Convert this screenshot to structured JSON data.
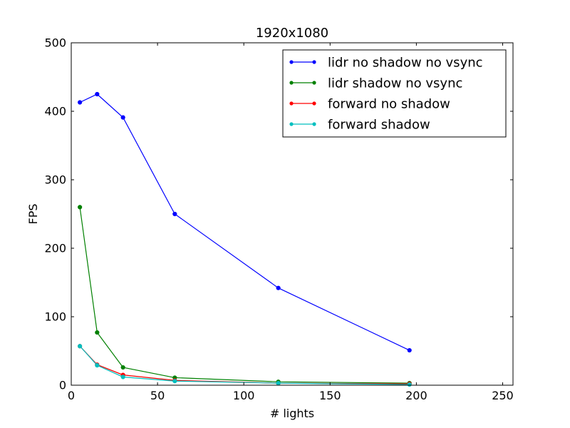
{
  "chart_data": {
    "type": "line",
    "title": "1920x1080",
    "xlabel": "# lights",
    "ylabel": "FPS",
    "xlim": [
      0,
      256
    ],
    "ylim": [
      0,
      500
    ],
    "xticks": [
      0,
      50,
      100,
      150,
      200,
      250
    ],
    "yticks": [
      0,
      100,
      200,
      300,
      400,
      500
    ],
    "grid": false,
    "legend_position": "top-right",
    "series": [
      {
        "name": "lidr no shadow no vsync",
        "color": "#0000ff",
        "x": [
          5,
          15,
          30,
          60,
          120,
          196
        ],
        "y": [
          413,
          425,
          391,
          250,
          142,
          51
        ]
      },
      {
        "name": "lidr shadow no vsync",
        "color": "#008000",
        "x": [
          5,
          15,
          30,
          60,
          120,
          196
        ],
        "y": [
          260,
          77,
          26,
          11,
          5,
          3
        ]
      },
      {
        "name": "forward no shadow",
        "color": "#ff0000",
        "x": [
          5,
          15,
          30,
          60,
          120,
          196
        ],
        "y": [
          57,
          30,
          15,
          7,
          3,
          2
        ]
      },
      {
        "name": "forward shadow",
        "color": "#00bfbf",
        "x": [
          5,
          15,
          30,
          60,
          120,
          196
        ],
        "y": [
          57,
          29,
          12,
          6,
          3,
          1
        ]
      }
    ]
  }
}
